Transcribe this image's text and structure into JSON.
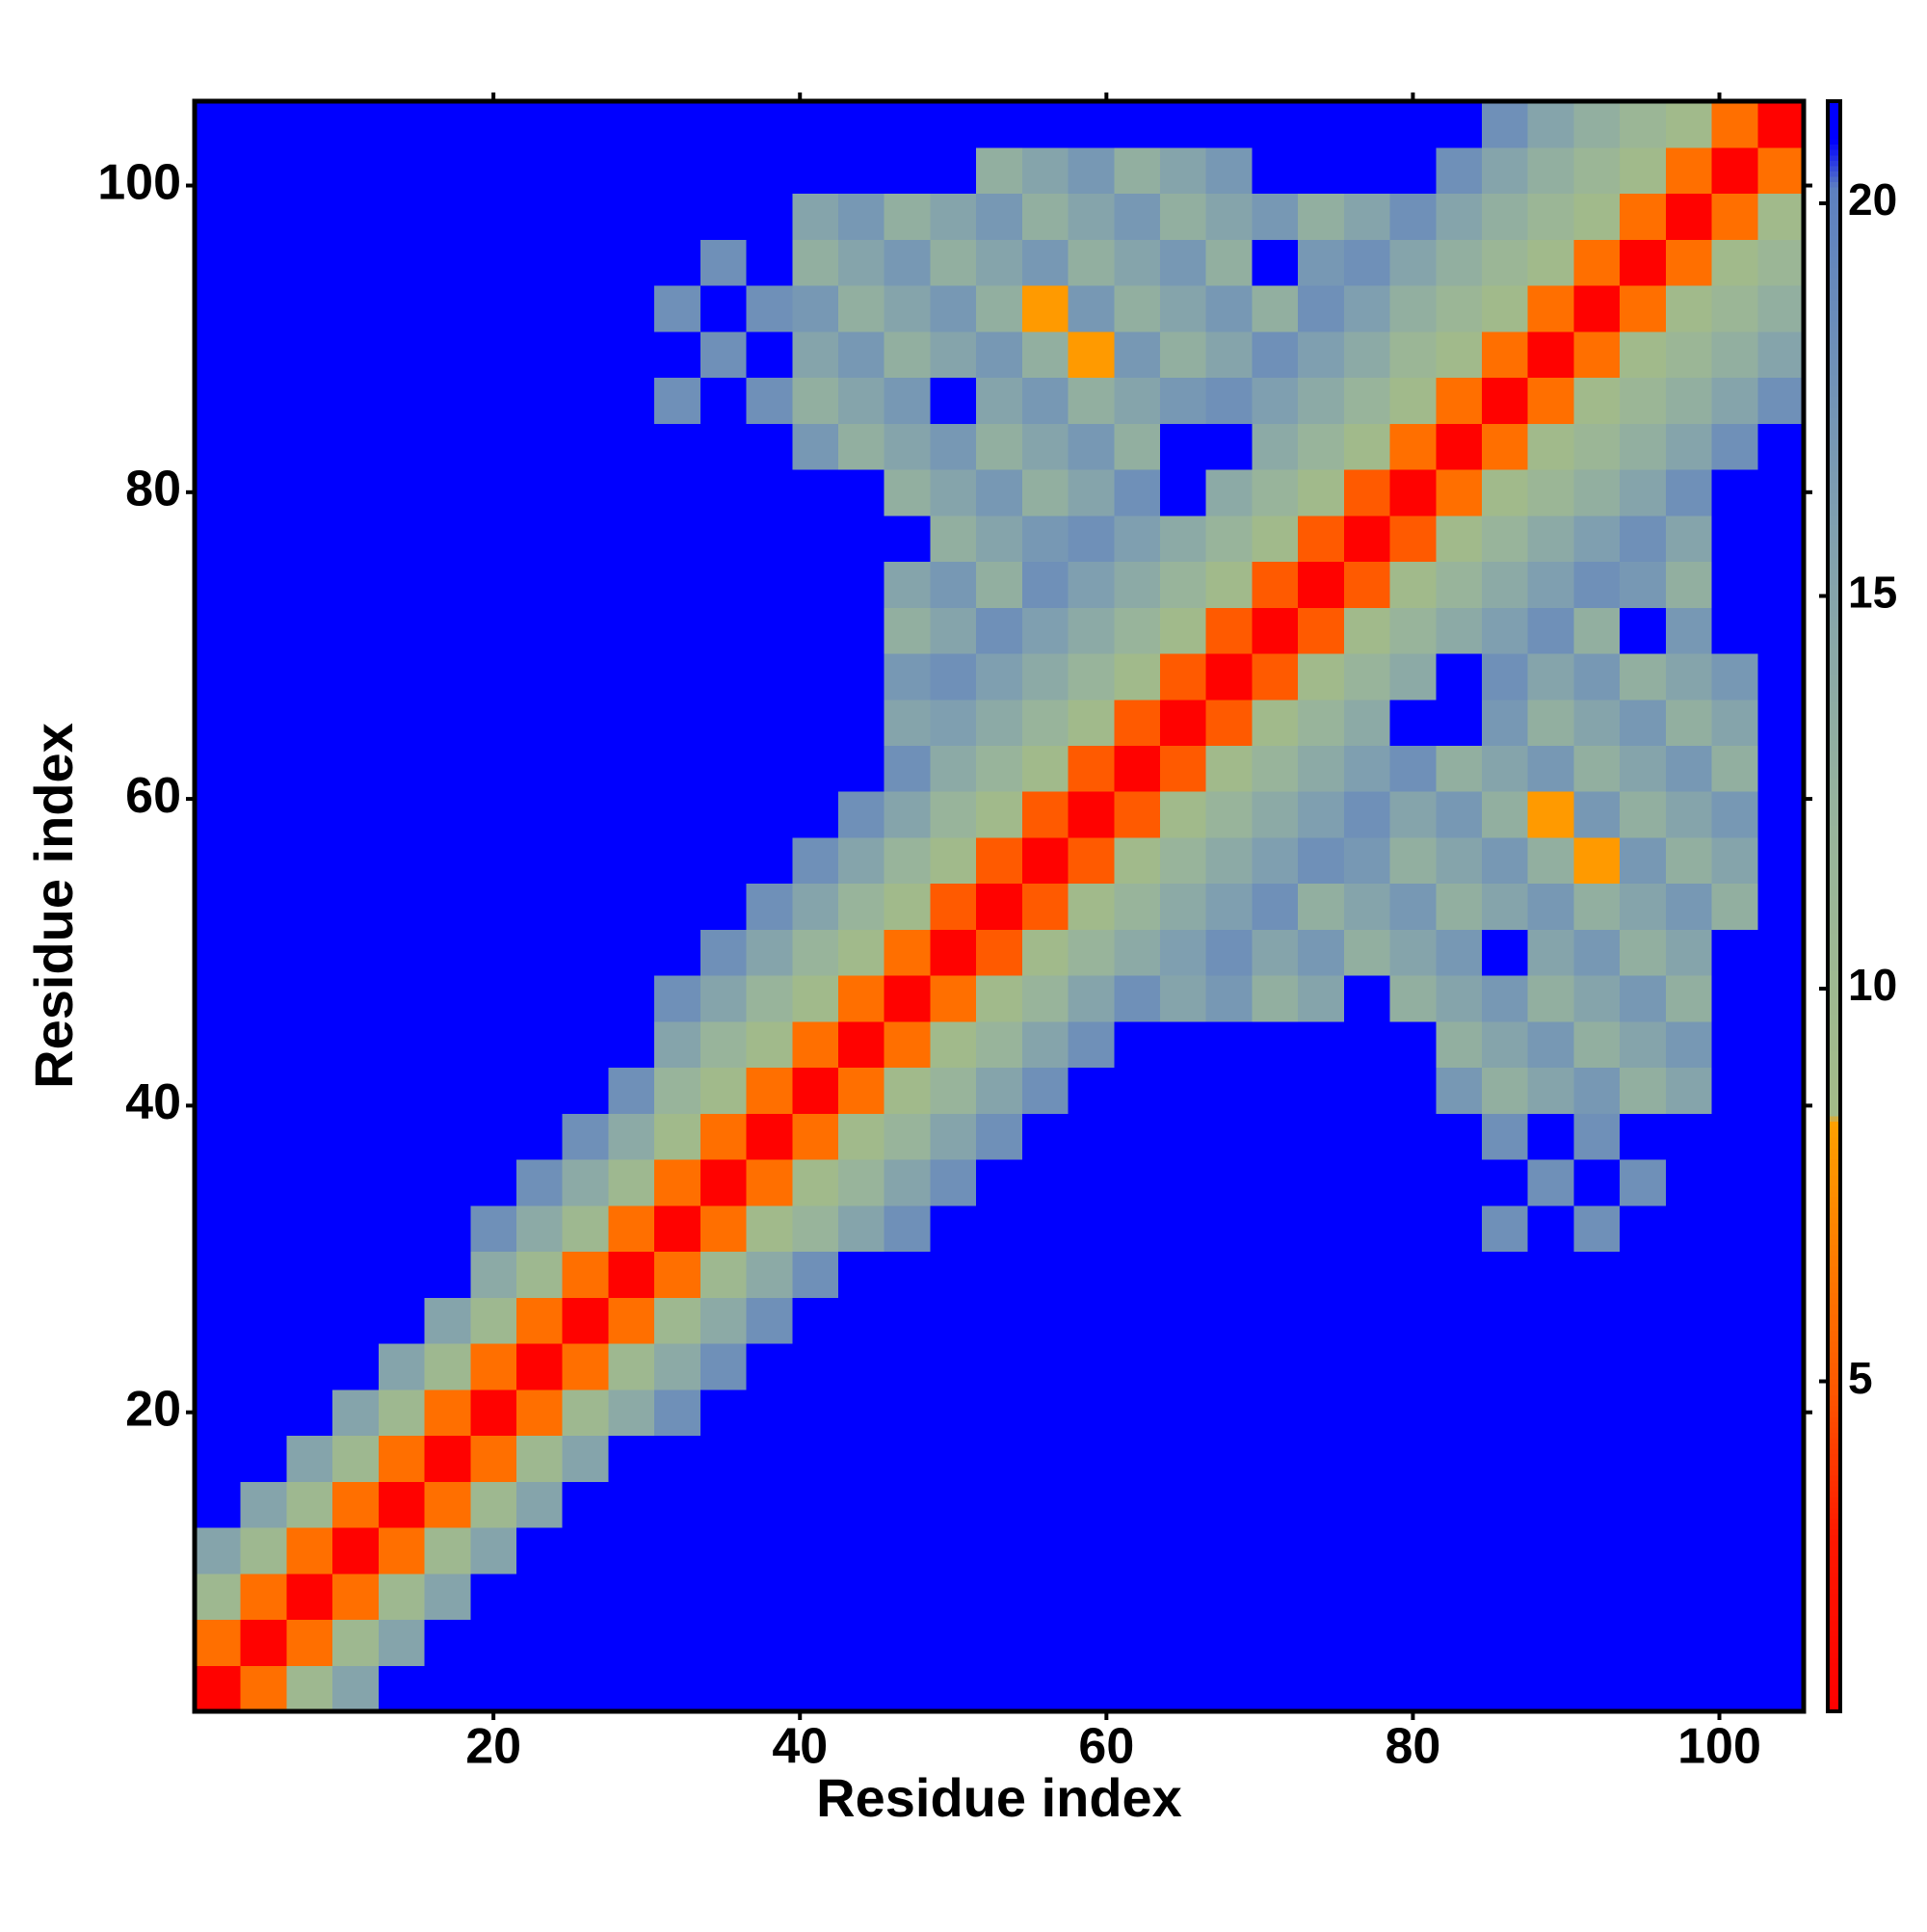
{
  "chart_data": {
    "type": "heatmap",
    "x_label": "Residue index",
    "y_label": "Residue index",
    "x": [
      2,
      5,
      8,
      11,
      14,
      17,
      20,
      23,
      26,
      29,
      32,
      35,
      38,
      41,
      44,
      47,
      50,
      53,
      56,
      59,
      62,
      65,
      68,
      71,
      74,
      77,
      80,
      83,
      86,
      89,
      92,
      95,
      98,
      101,
      104
    ],
    "y": [
      2,
      5,
      8,
      11,
      14,
      17,
      20,
      23,
      26,
      29,
      32,
      35,
      38,
      41,
      44,
      47,
      50,
      53,
      56,
      59,
      62,
      65,
      68,
      71,
      74,
      77,
      80,
      83,
      86,
      89,
      92,
      95,
      98,
      101,
      104
    ],
    "xlim": [
      0.5,
      105.5
    ],
    "ylim": [
      0.5,
      105.5
    ],
    "xticks": [
      20,
      40,
      60,
      80,
      100
    ],
    "yticks": [
      20,
      40,
      60,
      80,
      100
    ],
    "zlim": [
      0.8,
      21.3
    ],
    "zticks": [
      5,
      10,
      15,
      20
    ],
    "colorscale": [
      [
        0.8,
        "#ff0000"
      ],
      [
        3.0,
        "#ff1800"
      ],
      [
        5.0,
        "#ff5a00"
      ],
      [
        8.3,
        "#ffa000"
      ],
      [
        8.4,
        "#a3bb88"
      ],
      [
        12,
        "#98b49b"
      ],
      [
        16,
        "#7f9fb0"
      ],
      [
        20.2,
        "#5d80c0"
      ],
      [
        20.8,
        "#0000ff"
      ],
      [
        21.3,
        "#0000ff"
      ]
    ],
    "z": [
      [
        1,
        6,
        10,
        15,
        21,
        21,
        21,
        21,
        21,
        21,
        21,
        21,
        21,
        21,
        21,
        21,
        21,
        21,
        21,
        21,
        21,
        21,
        21,
        21,
        21,
        21,
        21,
        21,
        21,
        21,
        21,
        21,
        21,
        21,
        21
      ],
      [
        6,
        1,
        6,
        10,
        15,
        21,
        21,
        21,
        21,
        21,
        21,
        21,
        21,
        21,
        21,
        21,
        21,
        21,
        21,
        21,
        21,
        21,
        21,
        21,
        21,
        21,
        21,
        21,
        21,
        21,
        21,
        21,
        21,
        21,
        21
      ],
      [
        10,
        6,
        1,
        6,
        10,
        15,
        21,
        21,
        21,
        21,
        21,
        21,
        21,
        21,
        21,
        21,
        21,
        21,
        21,
        21,
        21,
        21,
        21,
        21,
        21,
        21,
        21,
        21,
        21,
        21,
        21,
        21,
        21,
        21,
        21
      ],
      [
        15,
        10,
        6,
        1,
        6,
        10,
        15,
        21,
        21,
        21,
        21,
        21,
        21,
        21,
        21,
        21,
        21,
        21,
        21,
        21,
        21,
        21,
        21,
        21,
        21,
        21,
        21,
        21,
        21,
        21,
        21,
        21,
        21,
        21,
        21
      ],
      [
        21,
        15,
        10,
        6,
        1,
        6,
        10,
        15,
        21,
        21,
        21,
        21,
        21,
        21,
        21,
        21,
        21,
        21,
        21,
        21,
        21,
        21,
        21,
        21,
        21,
        21,
        21,
        21,
        21,
        21,
        21,
        21,
        21,
        21,
        21
      ],
      [
        21,
        21,
        15,
        10,
        6,
        1,
        6,
        10,
        15,
        21,
        21,
        21,
        21,
        21,
        21,
        21,
        21,
        21,
        21,
        21,
        21,
        21,
        21,
        21,
        21,
        21,
        21,
        21,
        21,
        21,
        21,
        21,
        21,
        21,
        21
      ],
      [
        21,
        21,
        21,
        15,
        10,
        6,
        1,
        6,
        10,
        14,
        18,
        21,
        21,
        21,
        21,
        21,
        21,
        21,
        21,
        21,
        21,
        21,
        21,
        21,
        21,
        21,
        21,
        21,
        21,
        21,
        21,
        21,
        21,
        21,
        21
      ],
      [
        21,
        21,
        21,
        21,
        15,
        10,
        6,
        1,
        6,
        10,
        14,
        18,
        21,
        21,
        21,
        21,
        21,
        21,
        21,
        21,
        21,
        21,
        21,
        21,
        21,
        21,
        21,
        21,
        21,
        21,
        21,
        21,
        21,
        21,
        21
      ],
      [
        21,
        21,
        21,
        21,
        21,
        15,
        10,
        6,
        1,
        6,
        10,
        14,
        18,
        21,
        21,
        21,
        21,
        21,
        21,
        21,
        21,
        21,
        21,
        21,
        21,
        21,
        21,
        21,
        21,
        21,
        21,
        21,
        21,
        21,
        21
      ],
      [
        21,
        21,
        21,
        21,
        21,
        21,
        14,
        10,
        6,
        1,
        6,
        10,
        14,
        18,
        21,
        21,
        21,
        21,
        21,
        21,
        21,
        21,
        21,
        21,
        21,
        21,
        21,
        21,
        21,
        21,
        21,
        21,
        21,
        21,
        21
      ],
      [
        21,
        21,
        21,
        21,
        21,
        21,
        18,
        14,
        10,
        6,
        1,
        6,
        9,
        12,
        15,
        18,
        21,
        21,
        21,
        21,
        21,
        21,
        21,
        21,
        21,
        21,
        21,
        21,
        18,
        21,
        18,
        21,
        21,
        21,
        21
      ],
      [
        21,
        21,
        21,
        21,
        21,
        21,
        21,
        18,
        14,
        10,
        6,
        1,
        6,
        9,
        12,
        15,
        18,
        21,
        21,
        21,
        21,
        21,
        21,
        21,
        21,
        21,
        21,
        21,
        21,
        18,
        21,
        18,
        21,
        21,
        21
      ],
      [
        21,
        21,
        21,
        21,
        21,
        21,
        21,
        21,
        18,
        14,
        9,
        6,
        1,
        6,
        9,
        12,
        15,
        18,
        21,
        21,
        21,
        21,
        21,
        21,
        21,
        21,
        21,
        21,
        18,
        21,
        18,
        21,
        21,
        21,
        21
      ],
      [
        21,
        21,
        21,
        21,
        21,
        21,
        21,
        21,
        21,
        18,
        12,
        9,
        6,
        1,
        6,
        9,
        12,
        15,
        18,
        21,
        21,
        21,
        21,
        21,
        21,
        21,
        21,
        17,
        13,
        15,
        17,
        13,
        15,
        21,
        21
      ],
      [
        21,
        21,
        21,
        21,
        21,
        21,
        21,
        21,
        21,
        21,
        15,
        12,
        9,
        6,
        1,
        6,
        9,
        12,
        15,
        18,
        21,
        21,
        21,
        21,
        21,
        21,
        21,
        13,
        15,
        17,
        13,
        15,
        17,
        21,
        21
      ],
      [
        21,
        21,
        21,
        21,
        21,
        21,
        21,
        21,
        21,
        21,
        18,
        15,
        12,
        9,
        6,
        1,
        6,
        9,
        12,
        15,
        18,
        15,
        17,
        13,
        15,
        21,
        13,
        15,
        17,
        13,
        15,
        17,
        13,
        21,
        21
      ],
      [
        21,
        21,
        21,
        21,
        21,
        21,
        21,
        21,
        21,
        21,
        21,
        18,
        15,
        12,
        9,
        6,
        1,
        5,
        9,
        12,
        14,
        16,
        18,
        15,
        17,
        13,
        15,
        17,
        21,
        15,
        17,
        13,
        15,
        21,
        21
      ],
      [
        21,
        21,
        21,
        21,
        21,
        21,
        21,
        21,
        21,
        21,
        21,
        21,
        18,
        15,
        12,
        9,
        5,
        1,
        5,
        9,
        12,
        14,
        16,
        18,
        13,
        15,
        17,
        13,
        15,
        17,
        13,
        15,
        17,
        13,
        21
      ],
      [
        21,
        21,
        21,
        21,
        21,
        21,
        21,
        21,
        21,
        21,
        21,
        21,
        21,
        18,
        15,
        12,
        9,
        5,
        1,
        5,
        9,
        12,
        14,
        16,
        18,
        17,
        13,
        15,
        17,
        13,
        8,
        17,
        13,
        15,
        21
      ],
      [
        21,
        21,
        21,
        21,
        21,
        21,
        21,
        21,
        21,
        21,
        21,
        21,
        21,
        21,
        18,
        15,
        12,
        9,
        5,
        1,
        5,
        9,
        12,
        14,
        16,
        18,
        15,
        17,
        13,
        8,
        17,
        13,
        15,
        17,
        21
      ],
      [
        21,
        21,
        21,
        21,
        21,
        21,
        21,
        21,
        21,
        21,
        21,
        21,
        21,
        21,
        21,
        18,
        14,
        12,
        9,
        5,
        1,
        5,
        9,
        12,
        14,
        16,
        18,
        13,
        15,
        17,
        13,
        15,
        17,
        13,
        21
      ],
      [
        21,
        21,
        21,
        21,
        21,
        21,
        21,
        21,
        21,
        21,
        21,
        21,
        21,
        21,
        21,
        15,
        16,
        14,
        12,
        9,
        5,
        1,
        5,
        9,
        12,
        14,
        21,
        21,
        17,
        13,
        15,
        17,
        13,
        15,
        21
      ],
      [
        21,
        21,
        21,
        21,
        21,
        21,
        21,
        21,
        21,
        21,
        21,
        21,
        21,
        21,
        21,
        17,
        18,
        16,
        14,
        12,
        9,
        5,
        1,
        5,
        9,
        12,
        14,
        21,
        18,
        15,
        17,
        13,
        15,
        17,
        21
      ],
      [
        21,
        21,
        21,
        21,
        21,
        21,
        21,
        21,
        21,
        21,
        21,
        21,
        21,
        21,
        21,
        13,
        15,
        18,
        16,
        14,
        12,
        9,
        5,
        1,
        5,
        9,
        12,
        14,
        16,
        18,
        13,
        21,
        17,
        21,
        21
      ],
      [
        21,
        21,
        21,
        21,
        21,
        21,
        21,
        21,
        21,
        21,
        21,
        21,
        21,
        21,
        21,
        15,
        17,
        13,
        18,
        16,
        14,
        12,
        9,
        5,
        1,
        5,
        9,
        12,
        14,
        16,
        18,
        17,
        13,
        21,
        21
      ],
      [
        21,
        21,
        21,
        21,
        21,
        21,
        21,
        21,
        21,
        21,
        21,
        21,
        21,
        21,
        21,
        21,
        13,
        15,
        17,
        18,
        16,
        14,
        12,
        9,
        5,
        1,
        5,
        9,
        12,
        14,
        16,
        18,
        15,
        21,
        21
      ],
      [
        21,
        21,
        21,
        21,
        21,
        21,
        21,
        21,
        21,
        21,
        21,
        21,
        21,
        21,
        21,
        13,
        15,
        17,
        13,
        15,
        18,
        21,
        14,
        12,
        9,
        5,
        1,
        6,
        9,
        11,
        13,
        15,
        18,
        21,
        21
      ],
      [
        21,
        21,
        21,
        21,
        21,
        21,
        21,
        21,
        21,
        21,
        21,
        21,
        21,
        17,
        13,
        15,
        17,
        13,
        15,
        17,
        13,
        21,
        21,
        14,
        12,
        9,
        6,
        1,
        6,
        9,
        11,
        13,
        15,
        18,
        21
      ],
      [
        21,
        21,
        21,
        21,
        21,
        21,
        21,
        21,
        21,
        21,
        18,
        21,
        18,
        13,
        15,
        17,
        21,
        15,
        17,
        13,
        15,
        17,
        18,
        16,
        14,
        12,
        9,
        6,
        1,
        6,
        9,
        11,
        13,
        15,
        18
      ],
      [
        21,
        21,
        21,
        21,
        21,
        21,
        21,
        21,
        21,
        21,
        21,
        18,
        21,
        15,
        17,
        13,
        15,
        17,
        13,
        8,
        17,
        13,
        15,
        18,
        16,
        14,
        11,
        9,
        6,
        1,
        6,
        9,
        11,
        13,
        15
      ],
      [
        21,
        21,
        21,
        21,
        21,
        21,
        21,
        21,
        21,
        21,
        18,
        21,
        18,
        17,
        13,
        15,
        17,
        13,
        8,
        17,
        13,
        15,
        17,
        13,
        18,
        16,
        13,
        11,
        9,
        6,
        1,
        6,
        9,
        11,
        13
      ],
      [
        21,
        21,
        21,
        21,
        21,
        21,
        21,
        21,
        21,
        21,
        21,
        18,
        21,
        13,
        15,
        17,
        13,
        15,
        17,
        13,
        15,
        17,
        13,
        21,
        17,
        18,
        15,
        13,
        11,
        9,
        6,
        1,
        6,
        9,
        11
      ],
      [
        21,
        21,
        21,
        21,
        21,
        21,
        21,
        21,
        21,
        21,
        21,
        21,
        21,
        15,
        17,
        13,
        15,
        17,
        13,
        15,
        17,
        13,
        15,
        17,
        13,
        15,
        18,
        15,
        13,
        11,
        9,
        6,
        1,
        6,
        9
      ],
      [
        21,
        21,
        21,
        21,
        21,
        21,
        21,
        21,
        21,
        21,
        21,
        21,
        21,
        21,
        21,
        21,
        21,
        13,
        15,
        17,
        13,
        15,
        17,
        21,
        21,
        21,
        21,
        18,
        15,
        13,
        11,
        9,
        6,
        1,
        6
      ],
      [
        21,
        21,
        21,
        21,
        21,
        21,
        21,
        21,
        21,
        21,
        21,
        21,
        21,
        21,
        21,
        21,
        21,
        21,
        21,
        21,
        21,
        21,
        21,
        21,
        21,
        21,
        21,
        21,
        18,
        15,
        13,
        11,
        9,
        6,
        1
      ]
    ]
  }
}
